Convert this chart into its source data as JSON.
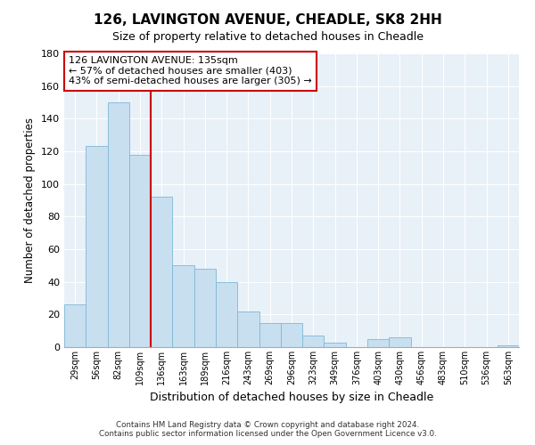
{
  "title": "126, LAVINGTON AVENUE, CHEADLE, SK8 2HH",
  "subtitle": "Size of property relative to detached houses in Cheadle",
  "xlabel": "Distribution of detached houses by size in Cheadle",
  "ylabel": "Number of detached properties",
  "bar_labels": [
    "29sqm",
    "56sqm",
    "82sqm",
    "109sqm",
    "136sqm",
    "163sqm",
    "189sqm",
    "216sqm",
    "243sqm",
    "269sqm",
    "296sqm",
    "323sqm",
    "349sqm",
    "376sqm",
    "403sqm",
    "430sqm",
    "456sqm",
    "483sqm",
    "510sqm",
    "536sqm",
    "563sqm"
  ],
  "bar_values": [
    26,
    123,
    150,
    118,
    92,
    50,
    48,
    40,
    22,
    15,
    15,
    7,
    3,
    0,
    5,
    6,
    0,
    0,
    0,
    0,
    1
  ],
  "bar_color": "#c8dff0",
  "bar_edge_color": "#7eb8d8",
  "vline_index": 4,
  "vline_color": "#cc0000",
  "ylim": [
    0,
    180
  ],
  "yticks": [
    0,
    20,
    40,
    60,
    80,
    100,
    120,
    140,
    160,
    180
  ],
  "annotation_title": "126 LAVINGTON AVENUE: 135sqm",
  "annotation_line1": "← 57% of detached houses are smaller (403)",
  "annotation_line2": "43% of semi-detached houses are larger (305) →",
  "annotation_box_color": "#ffffff",
  "annotation_box_edge": "#cc0000",
  "footer1": "Contains HM Land Registry data © Crown copyright and database right 2024.",
  "footer2": "Contains public sector information licensed under the Open Government Licence v3.0.",
  "background_color": "#ffffff",
  "plot_bg_color": "#e8f0f8",
  "grid_color": "#ffffff"
}
